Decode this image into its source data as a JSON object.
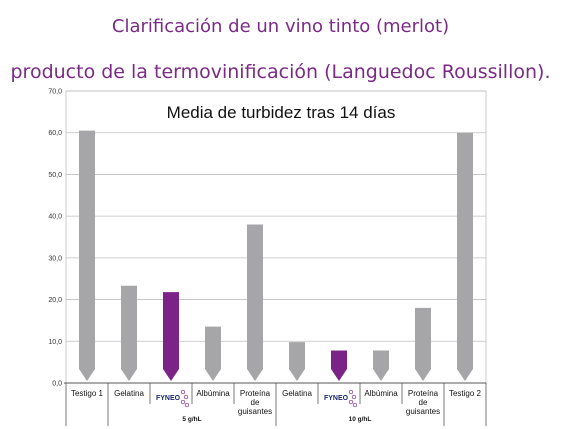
{
  "slide": {
    "title_line1": "Clarificación de un vino tinto (merlot)",
    "title_line2": "producto de la termovinificación  (Languedoc Roussillon)."
  },
  "chart_data": {
    "type": "bar",
    "title": "Media de turbidez tras 14 días",
    "ylim": [
      0,
      70
    ],
    "yticks": [
      "0,0",
      "10,0",
      "20,0",
      "30,0",
      "40,0",
      "50,0",
      "60,0",
      "70,0"
    ],
    "grid": true,
    "categories": [
      [
        "Testigo 1"
      ],
      [
        "Gelatina"
      ],
      [
        "FYNEO"
      ],
      [
        "Albúmina"
      ],
      [
        "Proteína",
        "de",
        "guisantes"
      ],
      [
        "Gelatina"
      ],
      [
        "FYNEO"
      ],
      [
        "Albúmina"
      ],
      [
        "Proteína",
        "de",
        "guisantes"
      ],
      [
        "Testigo 2"
      ]
    ],
    "values": [
      60.5,
      23.3,
      21.8,
      13.5,
      38.0,
      9.8,
      7.8,
      7.8,
      18.0,
      60.0
    ],
    "highlight": [
      false,
      false,
      true,
      false,
      false,
      false,
      true,
      false,
      false,
      false
    ],
    "groups": [
      {
        "label": "5 g/hL",
        "from": 1,
        "to": 4
      },
      {
        "label": "10 g/hL",
        "from": 5,
        "to": 8
      }
    ],
    "colors": {
      "bar": "#a6a6a8",
      "highlight": "#7b2386",
      "grid": "#bfbfbf",
      "axis": "#555555"
    }
  }
}
